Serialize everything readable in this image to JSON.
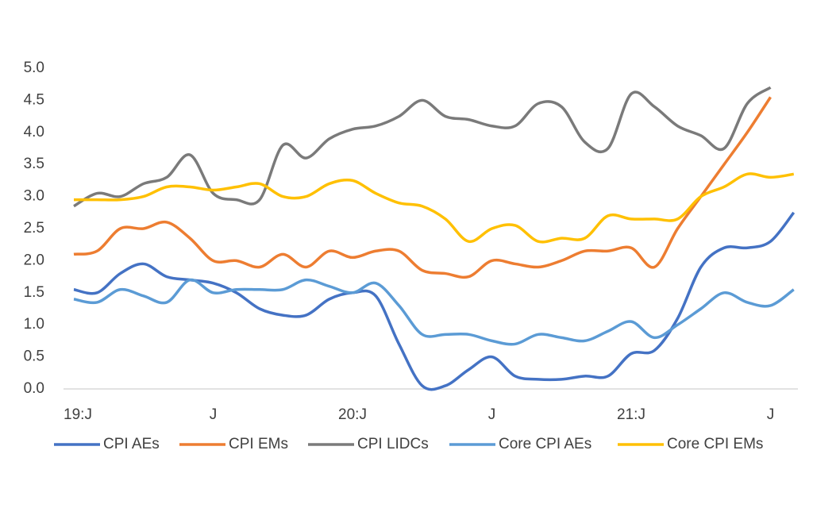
{
  "chart_data": {
    "type": "line",
    "categories": [
      "19:J",
      null,
      null,
      null,
      null,
      null,
      "J",
      null,
      null,
      null,
      null,
      null,
      "20:J",
      null,
      null,
      null,
      null,
      null,
      "J",
      null,
      null,
      null,
      null,
      null,
      "21:J",
      null,
      null,
      null,
      null,
      null,
      "J",
      null
    ],
    "series": [
      {
        "name": "CPI AEs",
        "color": "#4472c4",
        "values": [
          1.55,
          1.5,
          1.8,
          1.95,
          1.75,
          1.7,
          1.65,
          1.5,
          1.25,
          1.15,
          1.15,
          1.4,
          1.5,
          1.45,
          0.7,
          0.05,
          0.05,
          0.3,
          0.5,
          0.2,
          0.15,
          0.15,
          0.2,
          0.2,
          0.55,
          0.6,
          1.1,
          1.9,
          2.2,
          2.2,
          2.3,
          2.75
        ]
      },
      {
        "name": "CPI EMs",
        "color": "#ed7d31",
        "values": [
          2.1,
          2.15,
          2.5,
          2.5,
          2.6,
          2.35,
          2.0,
          2.0,
          1.9,
          2.1,
          1.9,
          2.15,
          2.05,
          2.15,
          2.15,
          1.85,
          1.8,
          1.75,
          2.0,
          1.95,
          1.9,
          2.0,
          2.15,
          2.15,
          2.2,
          1.9,
          2.5,
          3.0,
          3.5,
          4.0,
          4.55,
          null
        ]
      },
      {
        "name": "CPI LIDCs",
        "color": "#7a7a7a",
        "values": [
          2.85,
          3.05,
          3.0,
          3.2,
          3.3,
          3.65,
          3.05,
          2.95,
          2.95,
          3.8,
          3.6,
          3.9,
          4.05,
          4.1,
          4.25,
          4.5,
          4.25,
          4.2,
          4.1,
          4.1,
          4.45,
          4.4,
          3.85,
          3.75,
          4.6,
          4.4,
          4.1,
          3.95,
          3.75,
          4.45,
          4.7,
          null
        ]
      },
      {
        "name": "Core CPI AEs",
        "color": "#5b9bd5",
        "values": [
          1.4,
          1.35,
          1.55,
          1.45,
          1.35,
          1.7,
          1.5,
          1.55,
          1.55,
          1.55,
          1.7,
          1.6,
          1.5,
          1.65,
          1.3,
          0.85,
          0.85,
          0.85,
          0.75,
          0.7,
          0.85,
          0.8,
          0.75,
          0.9,
          1.05,
          0.8,
          1.0,
          1.25,
          1.5,
          1.35,
          1.3,
          1.55
        ]
      },
      {
        "name": "Core CPI EMs",
        "color": "#ffc000",
        "values": [
          2.95,
          2.95,
          2.95,
          3.0,
          3.15,
          3.15,
          3.1,
          3.15,
          3.2,
          3.0,
          3.0,
          3.2,
          3.25,
          3.05,
          2.9,
          2.85,
          2.65,
          2.3,
          2.5,
          2.55,
          2.3,
          2.35,
          2.35,
          2.7,
          2.65,
          2.65,
          2.65,
          3.0,
          3.15,
          3.35,
          3.3,
          3.35
        ]
      }
    ],
    "ylim": [
      0,
      5
    ],
    "yticks": [
      {
        "value": 0,
        "label": "0.0"
      },
      {
        "value": 0.5,
        "label": "0.5"
      },
      {
        "value": 1,
        "label": "1.0"
      },
      {
        "value": 1.5,
        "label": "1.5"
      },
      {
        "value": 2,
        "label": "2.0"
      },
      {
        "value": 2.5,
        "label": "2.5"
      },
      {
        "value": 3,
        "label": "3.0"
      },
      {
        "value": 3.5,
        "label": "3.5"
      },
      {
        "value": 4,
        "label": "4.0"
      },
      {
        "value": 4.5,
        "label": "4.5"
      },
      {
        "value": 5,
        "label": "5.0"
      }
    ],
    "grid": false,
    "legend": "bottom"
  }
}
